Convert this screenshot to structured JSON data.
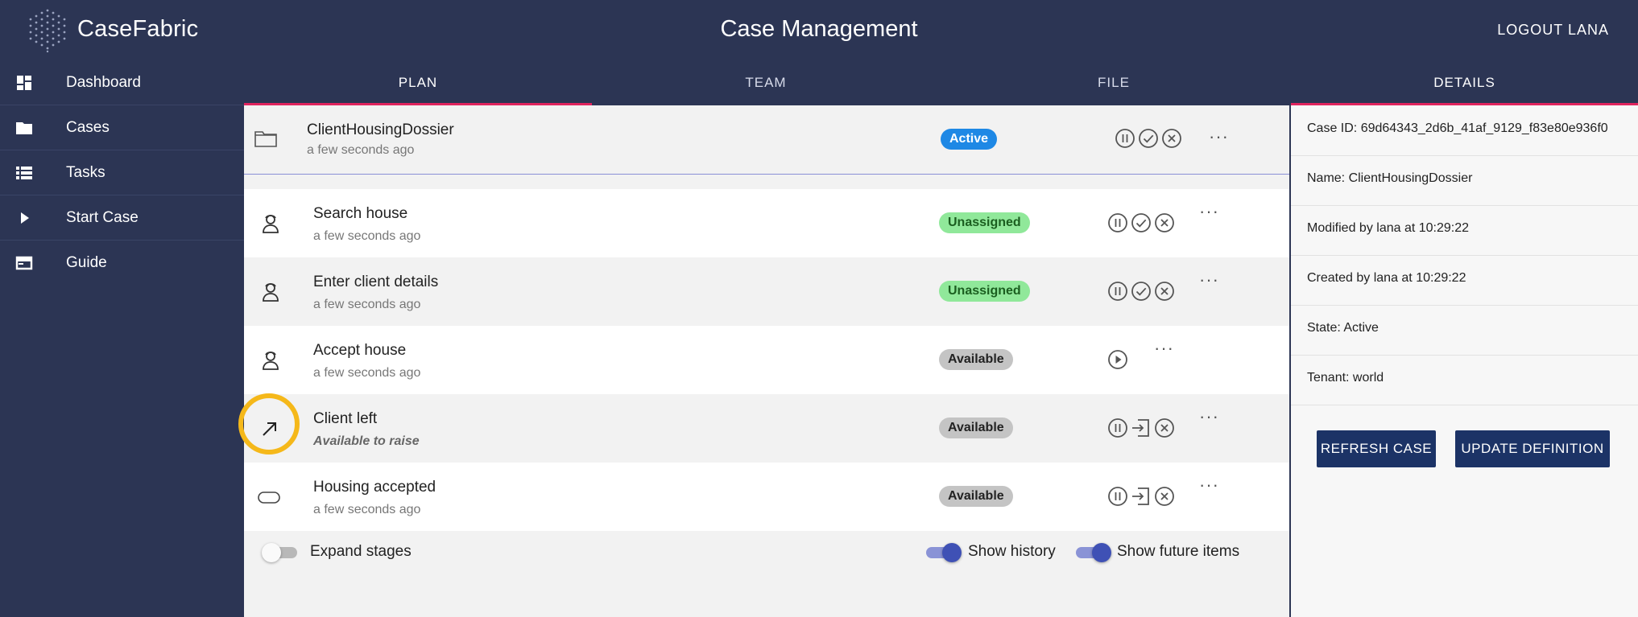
{
  "app": {
    "brand": "CaseFabric",
    "title": "Case Management",
    "logout_label": "LOGOUT LANA"
  },
  "sidebar": {
    "items": [
      {
        "label": "Dashboard",
        "icon": "dashboard-icon"
      },
      {
        "label": "Cases",
        "icon": "folder-icon"
      },
      {
        "label": "Tasks",
        "icon": "list-icon"
      },
      {
        "label": "Start Case",
        "icon": "play-icon"
      },
      {
        "label": "Guide",
        "icon": "guide-icon"
      }
    ]
  },
  "tabs": [
    {
      "label": "PLAN",
      "active": true
    },
    {
      "label": "TEAM"
    },
    {
      "label": "FILE"
    }
  ],
  "case": {
    "name": "ClientHousingDossier",
    "time": "a few seconds ago",
    "status": "Active",
    "actions": [
      "suspend-icon",
      "complete-icon",
      "terminate-icon"
    ]
  },
  "plan_items": [
    {
      "name": "Search house",
      "sub": "a few seconds ago",
      "type_icon": "human-task-icon",
      "status": "Unassigned",
      "actions": [
        "suspend-icon",
        "complete-icon",
        "terminate-icon"
      ]
    },
    {
      "name": "Enter client details",
      "sub": "a few seconds ago",
      "type_icon": "human-task-icon",
      "status": "Unassigned",
      "actions": [
        "suspend-icon",
        "complete-icon",
        "terminate-icon"
      ]
    },
    {
      "name": "Accept house",
      "sub": "a few seconds ago",
      "type_icon": "human-task-icon",
      "status": "Available",
      "actions": [
        "start-icon"
      ]
    },
    {
      "name": "Client left",
      "sub": "Available to raise",
      "type_icon": "event-arrow-icon",
      "status": "Available",
      "actions": [
        "suspend-icon",
        "raise-icon",
        "terminate-icon"
      ]
    },
    {
      "name": "Housing accepted",
      "sub": "a few seconds ago",
      "type_icon": "milestone-icon",
      "status": "Available",
      "actions": [
        "suspend-icon",
        "raise-icon",
        "terminate-icon"
      ]
    }
  ],
  "more_label": "···",
  "toggles": {
    "expand_stages": {
      "label": "Expand stages",
      "on": false
    },
    "show_history": {
      "label": "Show history",
      "on": true
    },
    "show_future": {
      "label": "Show future items",
      "on": true
    }
  },
  "details": {
    "title": "DETAILS",
    "case_id": "Case ID: 69d64343_2d6b_41af_9129_f83e80e936f0",
    "name": "Name: ClientHousingDossier",
    "modified": "Modified by lana at 10:29:22",
    "created": "Created by lana at 10:29:22",
    "state": "State: Active",
    "tenant": "Tenant: world",
    "refresh_label": "REFRESH CASE",
    "update_label": "UPDATE DEFINITION"
  },
  "colors": {
    "nav_bg": "#2c3554",
    "tab_indicator": "#e0245e",
    "active_badge": "#1e88e5",
    "unassigned_badge": "#90e89a",
    "available_badge": "#c4c4c4",
    "button": "#1c3366",
    "toggle_on": "#3f51b5",
    "highlight": "#f5b81a"
  }
}
